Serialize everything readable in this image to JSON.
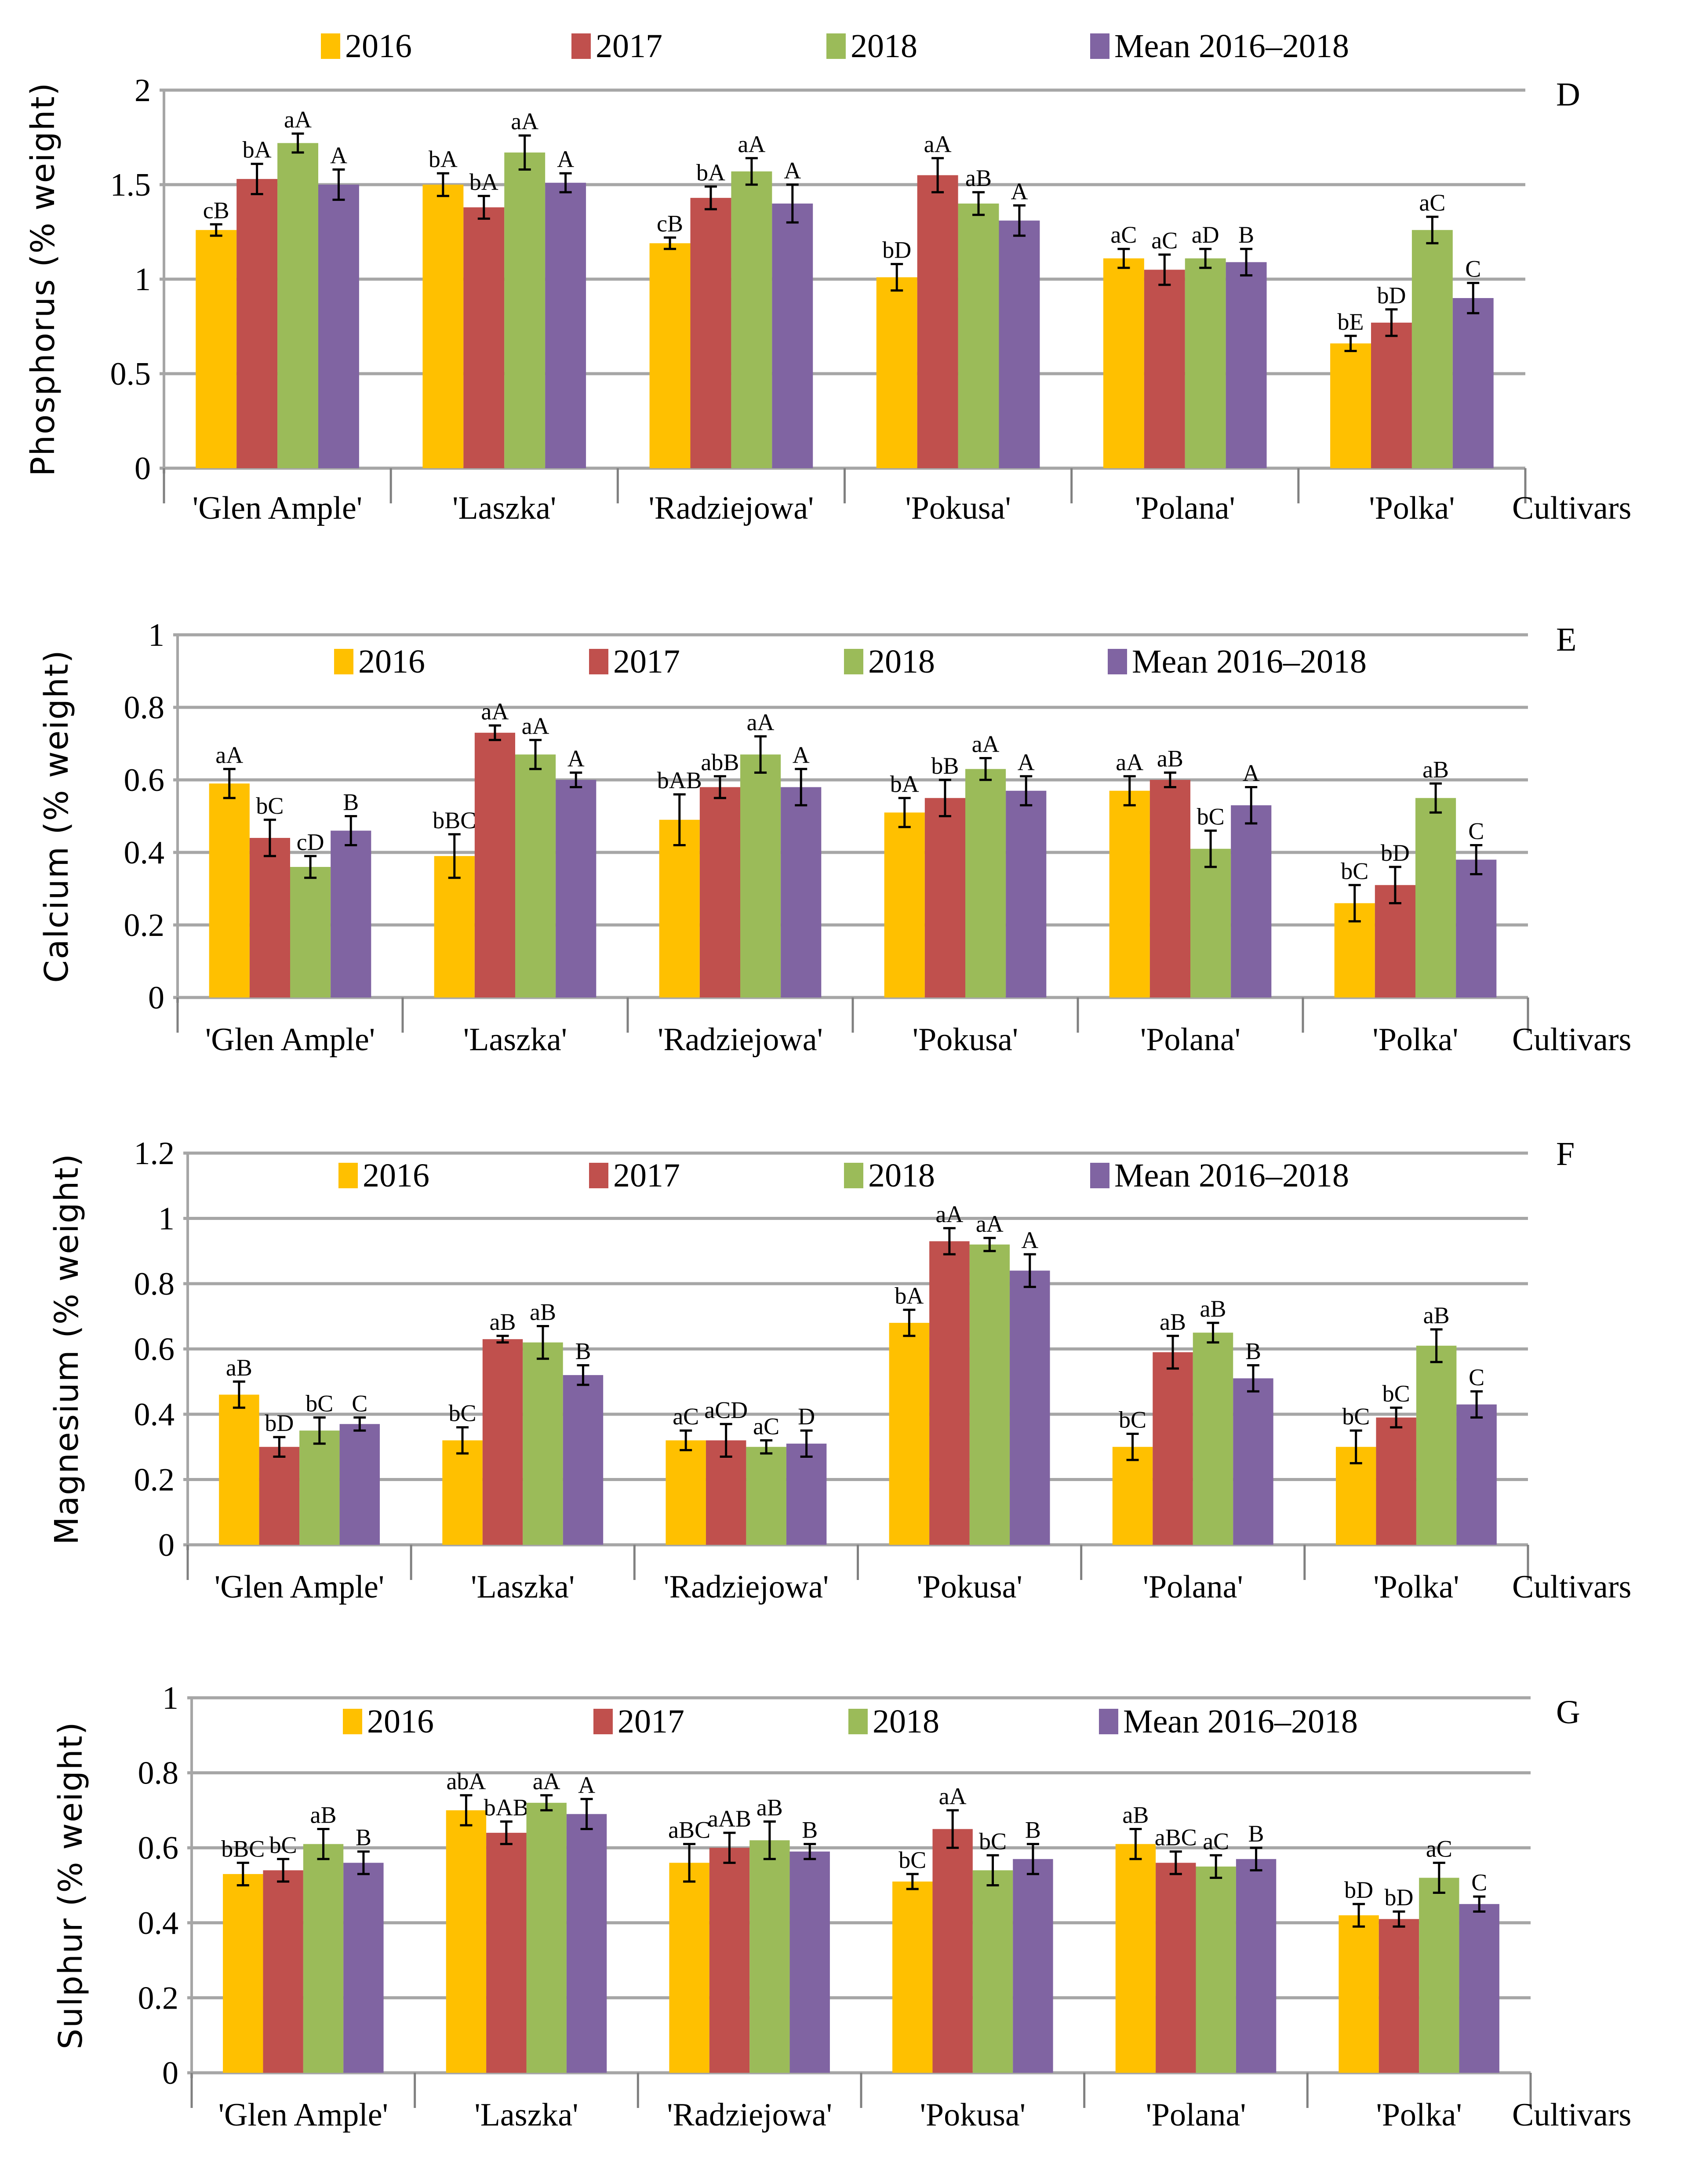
{
  "colors": {
    "2016": "#FFC000",
    "2017": "#C0504D",
    "2018": "#9BBB59",
    "mean": "#8064A2",
    "grid": "#A6A6A6"
  },
  "chart_data": [
    {
      "type": "bar",
      "panel": "D",
      "ylabel": "Phosphorus (% weight)",
      "xlabel": "Cultivars",
      "ylim": [
        0,
        2
      ],
      "yticks": [
        "0",
        "0.5",
        "1",
        "1.5",
        "2"
      ],
      "grid": true,
      "legend": "top",
      "categories": [
        "'Glen Ample'",
        "'Laszka'",
        "'Radziejowa'",
        "'Pokusa'",
        "'Polana'",
        "'Polka'"
      ],
      "series": [
        {
          "name": "2016",
          "values": [
            1.26,
            1.5,
            1.19,
            1.01,
            1.11,
            0.66
          ],
          "errors": [
            0.03,
            0.06,
            0.03,
            0.07,
            0.05,
            0.04
          ],
          "labels": [
            "cB",
            "bA",
            "cB",
            "bD",
            "aC",
            "bE"
          ]
        },
        {
          "name": "2017",
          "values": [
            1.53,
            1.38,
            1.43,
            1.55,
            1.05,
            0.77
          ],
          "errors": [
            0.08,
            0.06,
            0.06,
            0.09,
            0.08,
            0.07
          ],
          "labels": [
            "bA",
            "bA",
            "bA",
            "aA",
            "aC",
            "bD"
          ]
        },
        {
          "name": "2018",
          "values": [
            1.72,
            1.67,
            1.57,
            1.4,
            1.11,
            1.26
          ],
          "errors": [
            0.05,
            0.09,
            0.07,
            0.06,
            0.05,
            0.07
          ],
          "labels": [
            "aA",
            "aA",
            "aA",
            "aB",
            "aD",
            "aC"
          ]
        },
        {
          "name": "Mean 2016–2018",
          "values": [
            1.5,
            1.51,
            1.4,
            1.31,
            1.09,
            0.9
          ],
          "errors": [
            0.08,
            0.05,
            0.1,
            0.08,
            0.07,
            0.08
          ],
          "labels": [
            "A",
            "A",
            "A",
            "A",
            "B",
            "C"
          ]
        }
      ]
    },
    {
      "type": "bar",
      "panel": "E",
      "ylabel": "Calcium (% weight)",
      "xlabel": "Cultivars",
      "ylim": [
        0,
        1
      ],
      "yticks": [
        "0",
        "0.2",
        "0.4",
        "0.6",
        "0.8",
        "1"
      ],
      "grid": true,
      "legend": "top",
      "categories": [
        "'Glen Ample'",
        "'Laszka'",
        "'Radziejowa'",
        "'Pokusa'",
        "'Polana'",
        "'Polka'"
      ],
      "series": [
        {
          "name": "2016",
          "values": [
            0.59,
            0.39,
            0.49,
            0.51,
            0.57,
            0.26
          ],
          "errors": [
            0.04,
            0.06,
            0.07,
            0.04,
            0.04,
            0.05
          ],
          "labels": [
            "aA",
            "bBC",
            "bAB",
            "bA",
            "aA",
            "bC"
          ]
        },
        {
          "name": "2017",
          "values": [
            0.44,
            0.73,
            0.58,
            0.55,
            0.6,
            0.31
          ],
          "errors": [
            0.05,
            0.02,
            0.03,
            0.05,
            0.02,
            0.05
          ],
          "labels": [
            "bC",
            "aA",
            "abB",
            "bB",
            "aB",
            "bD"
          ]
        },
        {
          "name": "2018",
          "values": [
            0.36,
            0.67,
            0.67,
            0.63,
            0.41,
            0.55
          ],
          "errors": [
            0.03,
            0.04,
            0.05,
            0.03,
            0.05,
            0.04
          ],
          "labels": [
            "cD",
            "aA",
            "aA",
            "aA",
            "bC",
            "aB"
          ]
        },
        {
          "name": "Mean 2016–2018",
          "values": [
            0.46,
            0.6,
            0.58,
            0.57,
            0.53,
            0.38
          ],
          "errors": [
            0.04,
            0.02,
            0.05,
            0.04,
            0.05,
            0.04
          ],
          "labels": [
            "B",
            "A",
            "A",
            "A",
            "A",
            "C"
          ]
        }
      ]
    },
    {
      "type": "bar",
      "panel": "F",
      "ylabel": "Magnesium (% weight)",
      "xlabel": "Cultivars",
      "ylim": [
        0,
        1.2
      ],
      "yticks": [
        "0",
        "0.2",
        "0.4",
        "0.6",
        "0.8",
        "1",
        "1.2"
      ],
      "grid": true,
      "legend": "top",
      "categories": [
        "'Glen Ample'",
        "'Laszka'",
        "'Radziejowa'",
        "'Pokusa'",
        "'Polana'",
        "'Polka'"
      ],
      "series": [
        {
          "name": "2016",
          "values": [
            0.46,
            0.32,
            0.32,
            0.68,
            0.3,
            0.3
          ],
          "errors": [
            0.04,
            0.04,
            0.03,
            0.04,
            0.04,
            0.05
          ],
          "labels": [
            "aB",
            "bC",
            "aC",
            "bA",
            "bC",
            "bC"
          ]
        },
        {
          "name": "2017",
          "values": [
            0.3,
            0.63,
            0.32,
            0.93,
            0.59,
            0.39
          ],
          "errors": [
            0.03,
            0.01,
            0.05,
            0.04,
            0.05,
            0.03
          ],
          "labels": [
            "bD",
            "aB",
            "aCD",
            "aA",
            "aB",
            "bC"
          ]
        },
        {
          "name": "2018",
          "values": [
            0.35,
            0.62,
            0.3,
            0.92,
            0.65,
            0.61
          ],
          "errors": [
            0.04,
            0.05,
            0.02,
            0.02,
            0.03,
            0.05
          ],
          "labels": [
            "bC",
            "aB",
            "aC",
            "aA",
            "aB",
            "aB"
          ]
        },
        {
          "name": "Mean 2016–2018",
          "values": [
            0.37,
            0.52,
            0.31,
            0.84,
            0.51,
            0.43
          ],
          "errors": [
            0.02,
            0.03,
            0.04,
            0.05,
            0.04,
            0.04
          ],
          "labels": [
            "C",
            "B",
            "D",
            "A",
            "B",
            "C"
          ]
        }
      ]
    },
    {
      "type": "bar",
      "panel": "G",
      "ylabel": "Sulphur (% weight)",
      "xlabel": "Cultivars",
      "ylim": [
        0,
        1
      ],
      "yticks": [
        "0",
        "0.2",
        "0.4",
        "0.6",
        "0.8",
        "1"
      ],
      "grid": true,
      "legend": "top",
      "categories": [
        "'Glen Ample'",
        "'Laszka'",
        "'Radziejowa'",
        "'Pokusa'",
        "'Polana'",
        "'Polka'"
      ],
      "series": [
        {
          "name": "2016",
          "values": [
            0.53,
            0.7,
            0.56,
            0.51,
            0.61,
            0.42
          ],
          "errors": [
            0.03,
            0.04,
            0.05,
            0.02,
            0.04,
            0.03
          ],
          "labels": [
            "bBC",
            "abA",
            "aBC",
            "bC",
            "aB",
            "bD"
          ]
        },
        {
          "name": "2017",
          "values": [
            0.54,
            0.64,
            0.6,
            0.65,
            0.56,
            0.41
          ],
          "errors": [
            0.03,
            0.03,
            0.04,
            0.05,
            0.03,
            0.02
          ],
          "labels": [
            "bC",
            "bAB",
            "aAB",
            "aA",
            "aBC",
            "bD"
          ]
        },
        {
          "name": "2018",
          "values": [
            0.61,
            0.72,
            0.62,
            0.54,
            0.55,
            0.52
          ],
          "errors": [
            0.04,
            0.02,
            0.05,
            0.04,
            0.03,
            0.04
          ],
          "labels": [
            "aB",
            "aA",
            "aB",
            "bC",
            "aC",
            "aC"
          ]
        },
        {
          "name": "Mean 2016–2018",
          "values": [
            0.56,
            0.69,
            0.59,
            0.57,
            0.57,
            0.45
          ],
          "errors": [
            0.03,
            0.04,
            0.02,
            0.04,
            0.03,
            0.02
          ],
          "labels": [
            "B",
            "A",
            "B",
            "B",
            "B",
            "C"
          ]
        }
      ]
    }
  ]
}
